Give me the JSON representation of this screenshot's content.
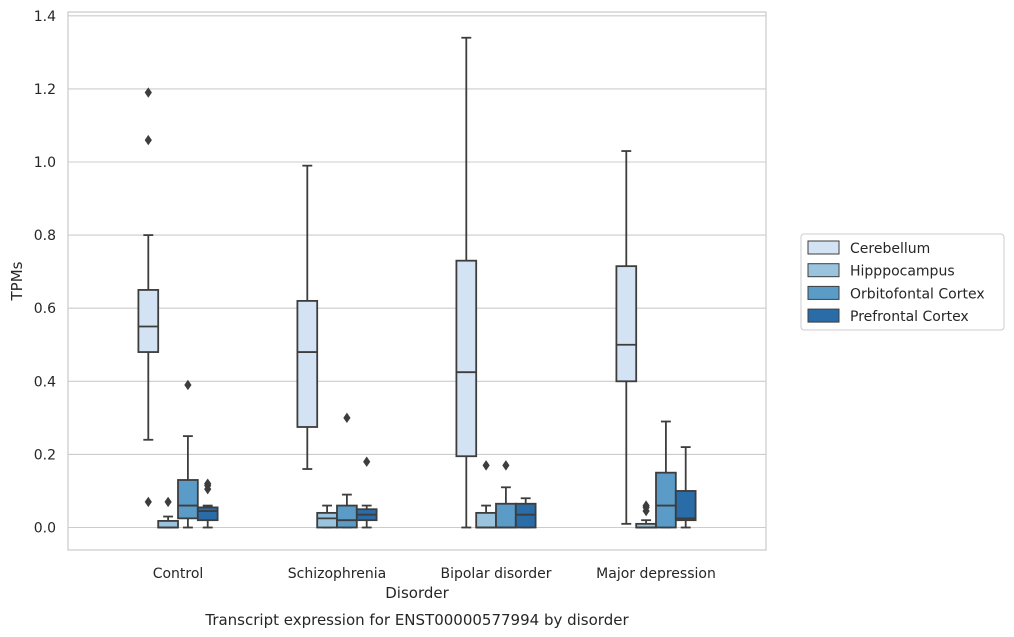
{
  "chart_data": {
    "type": "box",
    "caption": "Transcript expression for ENST00000577994 by disorder",
    "xlabel": "Disorder",
    "ylabel": "TPMs",
    "ylim": [
      -0.065,
      1.41
    ],
    "yticks": [
      "0.0",
      "0.2",
      "0.4",
      "0.6",
      "0.8",
      "1.0",
      "1.2",
      "1.4"
    ],
    "ytick_values": [
      0,
      0.2,
      0.4,
      0.6,
      0.8,
      1.0,
      1.2,
      1.4
    ],
    "grid": "horizontal",
    "legend_position": "right",
    "categories": [
      "Control",
      "Schizophrenia",
      "Bipolar disorder",
      "Major depression"
    ],
    "series": [
      {
        "name": "Cerebellum",
        "color": "#d4e3f3",
        "boxes": [
          {
            "min": 0.24,
            "q1": 0.48,
            "median": 0.55,
            "q3": 0.65,
            "max": 0.8,
            "outliers": [
              0.07,
              1.06,
              1.19
            ]
          },
          {
            "min": 0.16,
            "q1": 0.275,
            "median": 0.48,
            "q3": 0.62,
            "max": 0.99,
            "outliers": []
          },
          {
            "min": 0.0,
            "q1": 0.195,
            "median": 0.425,
            "q3": 0.73,
            "max": 1.34,
            "outliers": []
          },
          {
            "min": 0.01,
            "q1": 0.4,
            "median": 0.5,
            "q3": 0.715,
            "max": 1.03,
            "outliers": []
          }
        ]
      },
      {
        "name": "Hipppocampus",
        "color": "#9ac4de",
        "boxes": [
          {
            "min": 0.0,
            "q1": 0.0,
            "median": 0.0,
            "q3": 0.018,
            "max": 0.03,
            "outliers": [
              0.07
            ]
          },
          {
            "min": 0.0,
            "q1": 0.0,
            "median": 0.025,
            "q3": 0.04,
            "max": 0.06,
            "outliers": []
          },
          {
            "min": 0.0,
            "q1": 0.0,
            "median": 0.0,
            "q3": 0.04,
            "max": 0.06,
            "outliers": [
              0.17
            ]
          },
          {
            "min": 0.0,
            "q1": 0.0,
            "median": 0.0,
            "q3": 0.01,
            "max": 0.02,
            "outliers": [
              0.045,
              0.055,
              0.06
            ]
          }
        ]
      },
      {
        "name": "Orbitofontal Cortex",
        "color": "#5a9bc8",
        "boxes": [
          {
            "min": 0.0,
            "q1": 0.025,
            "median": 0.06,
            "q3": 0.13,
            "max": 0.25,
            "outliers": [
              0.39
            ]
          },
          {
            "min": 0.0,
            "q1": 0.0,
            "median": 0.02,
            "q3": 0.06,
            "max": 0.09,
            "outliers": [
              0.3
            ]
          },
          {
            "min": 0.0,
            "q1": 0.0,
            "median": 0.0,
            "q3": 0.065,
            "max": 0.11,
            "outliers": [
              0.17
            ]
          },
          {
            "min": 0.0,
            "q1": 0.0,
            "median": 0.06,
            "q3": 0.15,
            "max": 0.29,
            "outliers": []
          }
        ]
      },
      {
        "name": "Prefrontal Cortex",
        "color": "#2a6ca8",
        "boxes": [
          {
            "min": 0.0,
            "q1": 0.02,
            "median": 0.045,
            "q3": 0.055,
            "max": 0.06,
            "outliers": [
              0.105,
              0.115,
              0.12
            ]
          },
          {
            "min": 0.0,
            "q1": 0.02,
            "median": 0.035,
            "q3": 0.05,
            "max": 0.06,
            "outliers": [
              0.18
            ]
          },
          {
            "min": 0.0,
            "q1": 0.0,
            "median": 0.035,
            "q3": 0.065,
            "max": 0.08,
            "outliers": []
          },
          {
            "min": 0.0,
            "q1": 0.02,
            "median": 0.025,
            "q3": 0.1,
            "max": 0.22,
            "outliers": []
          }
        ]
      }
    ]
  }
}
